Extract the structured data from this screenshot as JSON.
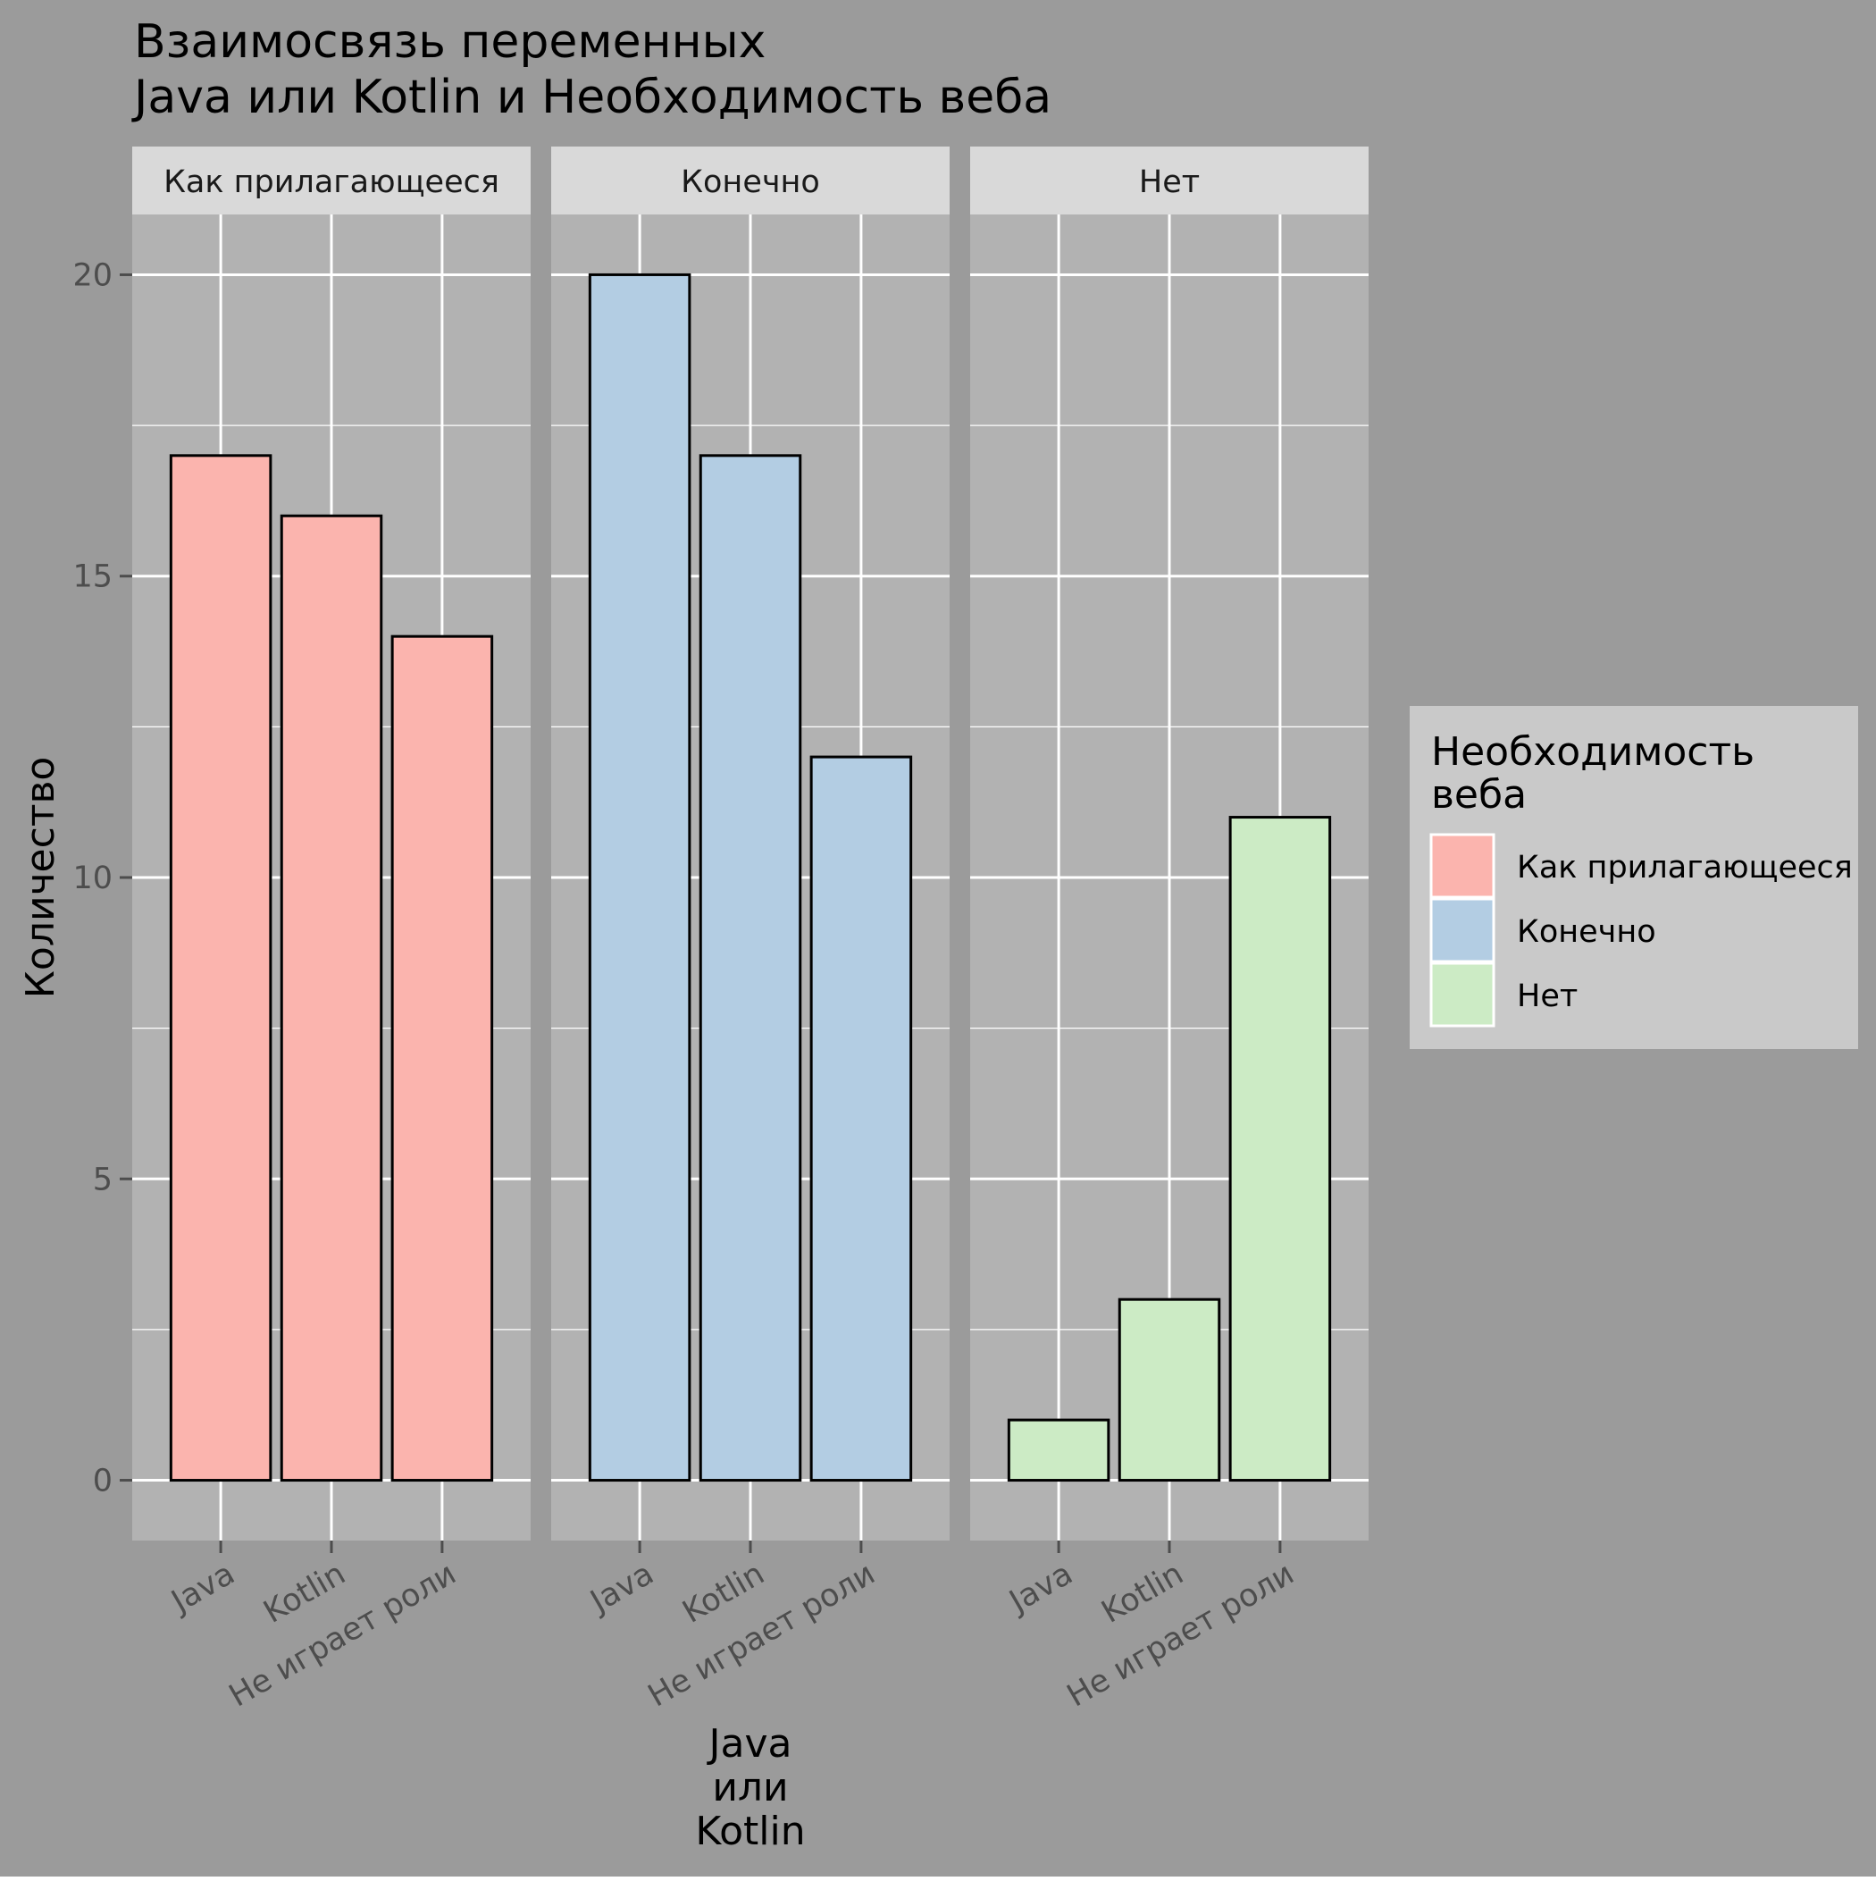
{
  "chart_data": {
    "type": "bar",
    "title_lines": [
      "Взаимосвязь переменных",
      " Java или Kotlin и Необходимость веба"
    ],
    "xlabel_lines": [
      "Java",
      "или",
      "Kotlin"
    ],
    "ylabel": "Количество",
    "categories": [
      "Java",
      "Kotlin",
      "Не играет роли"
    ],
    "facets": [
      {
        "label": "Как прилагающееся",
        "values": [
          17,
          16,
          14
        ],
        "color": "#FBB4AE"
      },
      {
        "label": "Конечно",
        "values": [
          20,
          17,
          12
        ],
        "color": "#B3CDE3"
      },
      {
        "label": "Нет",
        "values": [
          1,
          3,
          11
        ],
        "color": "#CCEBC5"
      }
    ],
    "ylim": [
      -1,
      21
    ],
    "y_ticks": [
      0,
      5,
      10,
      15,
      20
    ],
    "grid": true,
    "legend": {
      "title_lines": [
        "Необходимость",
        "веба"
      ],
      "position": "right",
      "items": [
        {
          "label": "Как прилагающееся",
          "color": "#FBB4AE"
        },
        {
          "label": "Конечно",
          "color": "#B3CDE3"
        },
        {
          "label": "Нет",
          "color": "#CCEBC5"
        }
      ]
    },
    "colors": {
      "background": "#9B9B9B",
      "panel": "#B2B2B2",
      "strip": "#D9D9D9",
      "legend_background": "#C9C9C9",
      "grid": "#FFFFFF",
      "bar_outline": "#000000",
      "tick_text": "#4D4D4D"
    }
  }
}
